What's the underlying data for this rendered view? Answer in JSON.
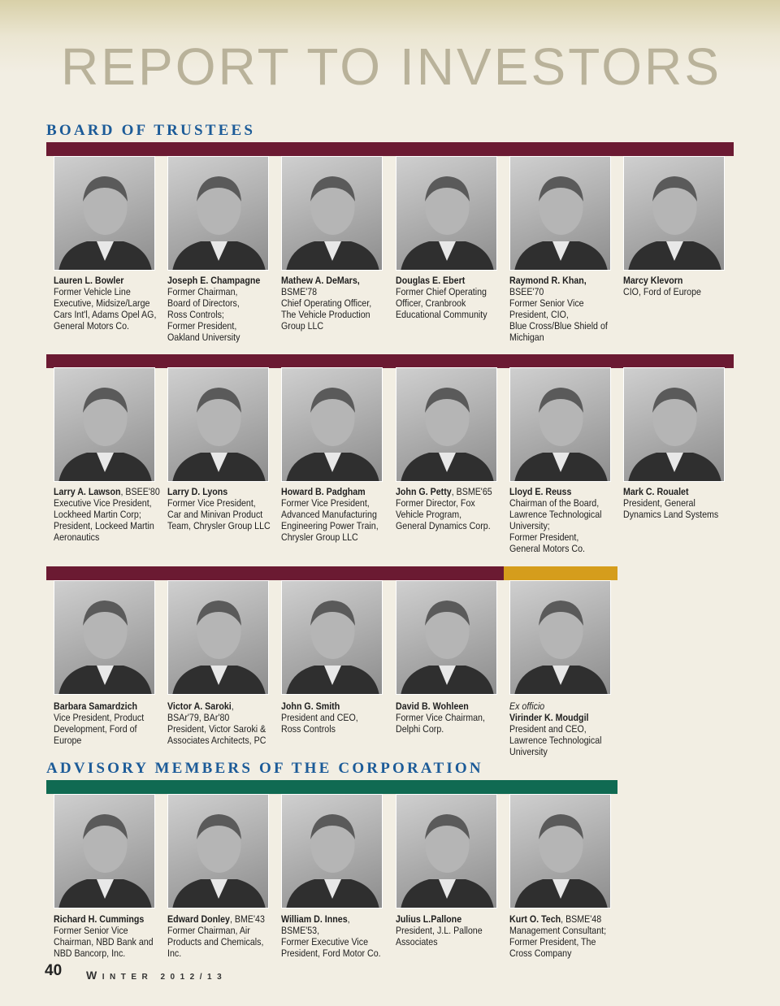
{
  "header": {
    "title": "REPORT TO INVESTORS"
  },
  "board": {
    "heading": "BOARD OF TRUSTEES",
    "members": [
      {
        "name": "Lauren L. Bowler",
        "lines": [
          "Former Vehicle Line",
          "Executive, Midsize/Large",
          "Cars Int'l, Adams Opel AG,",
          "General Motors Co."
        ]
      },
      {
        "name": "Joseph E. Champagne",
        "lines": [
          "Former Chairman,",
          "Board of Directors,",
          "Ross Controls;",
          "Former President,",
          "Oakland University"
        ]
      },
      {
        "name": "Mathew A. DeMars,",
        "lines": [
          "BSME'78",
          "Chief Operating Officer,",
          "The Vehicle Production",
          "Group LLC"
        ]
      },
      {
        "name": "Douglas E. Ebert",
        "lines": [
          "Former Chief Operating",
          "Officer, Cranbrook",
          "Educational Community"
        ]
      },
      {
        "name": "Raymond R. Khan,",
        "lines": [
          "BSEE'70",
          "Former Senior Vice",
          "President, CIO,",
          "Blue Cross/Blue Shield of",
          "Michigan"
        ]
      },
      {
        "name": "Marcy Klevorn",
        "lines": [
          "CIO, Ford of Europe"
        ]
      },
      {
        "name": "Larry A. Lawson",
        "degree": ", BSEE'80",
        "lines": [
          "Executive Vice President,",
          "Lockheed Martin Corp;",
          "President, Lockeed Martin",
          "Aeronautics"
        ]
      },
      {
        "name": "Larry D. Lyons",
        "lines": [
          "Former Vice President,",
          "Car and Minivan Product",
          "Team, Chrysler Group LLC"
        ]
      },
      {
        "name": "Howard B. Padgham",
        "lines": [
          "Former Vice President,",
          "Advanced Manufacturing",
          "Engineering Power Train,",
          "Chrysler Group LLC"
        ]
      },
      {
        "name": "John G. Petty",
        "degree": ", BSME'65",
        "lines": [
          "Former Director, Fox",
          "Vehicle Program,",
          "General Dynamics Corp."
        ]
      },
      {
        "name": "Lloyd E. Reuss",
        "lines": [
          "Chairman of the Board,",
          "Lawrence Technological",
          "University;",
          "Former President,",
          "General Motors Co."
        ]
      },
      {
        "name": "Mark C. Roualet",
        "lines": [
          "President, General",
          "Dynamics Land Systems"
        ]
      },
      {
        "name": "Barbara Samardzich",
        "lines": [
          "Vice President, Product",
          "Development, Ford of",
          "Europe"
        ]
      },
      {
        "name": "Victor A. Saroki",
        "degree": ",",
        "lines": [
          "BSAr'79, BAr'80",
          "President, Victor Saroki &",
          "Associates Architects, PC"
        ]
      },
      {
        "name": "John G. Smith",
        "lines": [
          "President and CEO,",
          "Ross Controls"
        ]
      },
      {
        "name": "David B. Wohleen",
        "lines": [
          "Former Vice Chairman,",
          "Delphi Corp."
        ]
      },
      {
        "prefix": "Ex officio",
        "name": "Virinder K. Moudgil",
        "lines": [
          "President and CEO,",
          "Lawrence Technological",
          "University"
        ]
      }
    ]
  },
  "advisory": {
    "heading": "ADVISORY MEMBERS OF THE CORPORATION",
    "members": [
      {
        "name": "Richard H. Cummings",
        "lines": [
          "Former Senior Vice",
          "Chairman, NBD Bank and",
          "NBD Bancorp, Inc."
        ]
      },
      {
        "name": "Edward Donley",
        "degree": ", BME'43",
        "lines": [
          "Former Chairman, Air",
          "Products and Chemicals,",
          "Inc."
        ]
      },
      {
        "name": "William D. Innes",
        "degree": ",",
        "lines": [
          "BSME'53,",
          "Former Executive Vice",
          "President, Ford Motor Co."
        ]
      },
      {
        "name": "Julius L.Pallone",
        "lines": [
          "President, J.L. Pallone",
          "Associates"
        ]
      },
      {
        "name": "Kurt O. Tech",
        "degree": ", BSME'48",
        "lines": [
          "Management Consultant;",
          "Former President, The",
          "Cross Company"
        ]
      }
    ]
  },
  "footer": {
    "page": "40",
    "issue": "WINTER 2012/13"
  }
}
